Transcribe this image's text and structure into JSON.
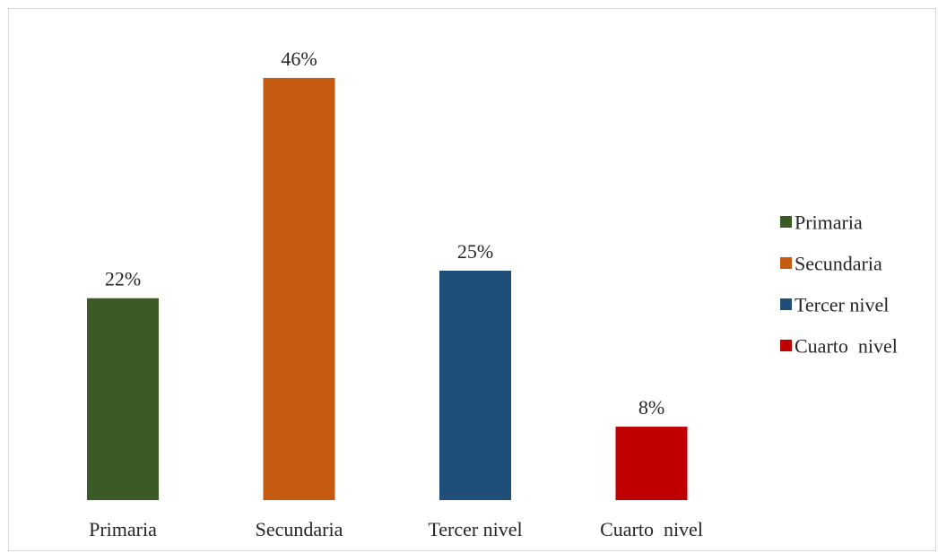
{
  "chart_data": {
    "type": "bar",
    "categories": [
      "Primaria",
      "Secundaria",
      "Tercer nivel",
      "Cuarto  nivel"
    ],
    "values": [
      22,
      46,
      25,
      8
    ],
    "data_labels": [
      "22%",
      "46%",
      "25%",
      "8%"
    ],
    "unit": "%",
    "colors": [
      "#3b5a25",
      "#c55a11",
      "#1f4e79",
      "#c00000"
    ],
    "ylim": [
      0,
      50
    ],
    "grid": false,
    "legend": {
      "position": "right",
      "entries": [
        "Primaria",
        "Secundaria",
        "Tercer nivel",
        "Cuarto  nivel"
      ]
    }
  }
}
